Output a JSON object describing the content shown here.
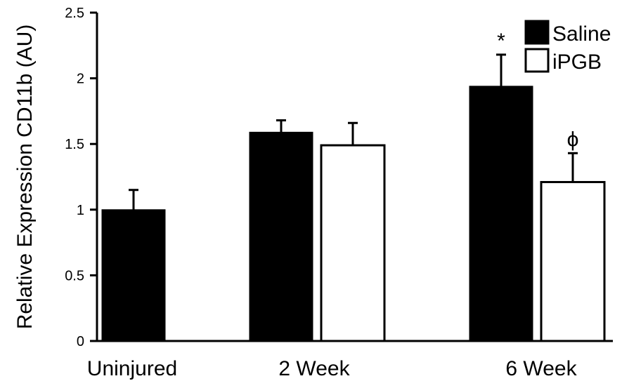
{
  "chart_data": {
    "type": "bar",
    "title": "",
    "xlabel": "",
    "ylabel": "Relative Expression CD11b (AU)",
    "ylim": [
      0,
      2.5
    ],
    "yticks": [
      "0",
      "0.5",
      "1",
      "1.5",
      "2",
      "2.5"
    ],
    "categories": [
      "Uninjured",
      "2 Week",
      "6 Week"
    ],
    "series": [
      {
        "name": "Saline",
        "color": "#000000",
        "fill": "#000000",
        "values": [
          1.0,
          1.59,
          1.94
        ],
        "errors": [
          0.15,
          0.09,
          0.24
        ]
      },
      {
        "name": "iPGB",
        "color": "#000000",
        "fill": "#ffffff",
        "values": [
          null,
          1.49,
          1.21
        ],
        "errors": [
          null,
          0.17,
          0.22
        ]
      }
    ],
    "annotations": [
      {
        "text": "*",
        "category": "6 Week",
        "series": "Saline"
      },
      {
        "text": "ϕ",
        "category": "6 Week",
        "series": "iPGB"
      }
    ],
    "legend": {
      "position": "top-right",
      "entries": [
        "Saline",
        "iPGB"
      ]
    },
    "grid": false
  }
}
